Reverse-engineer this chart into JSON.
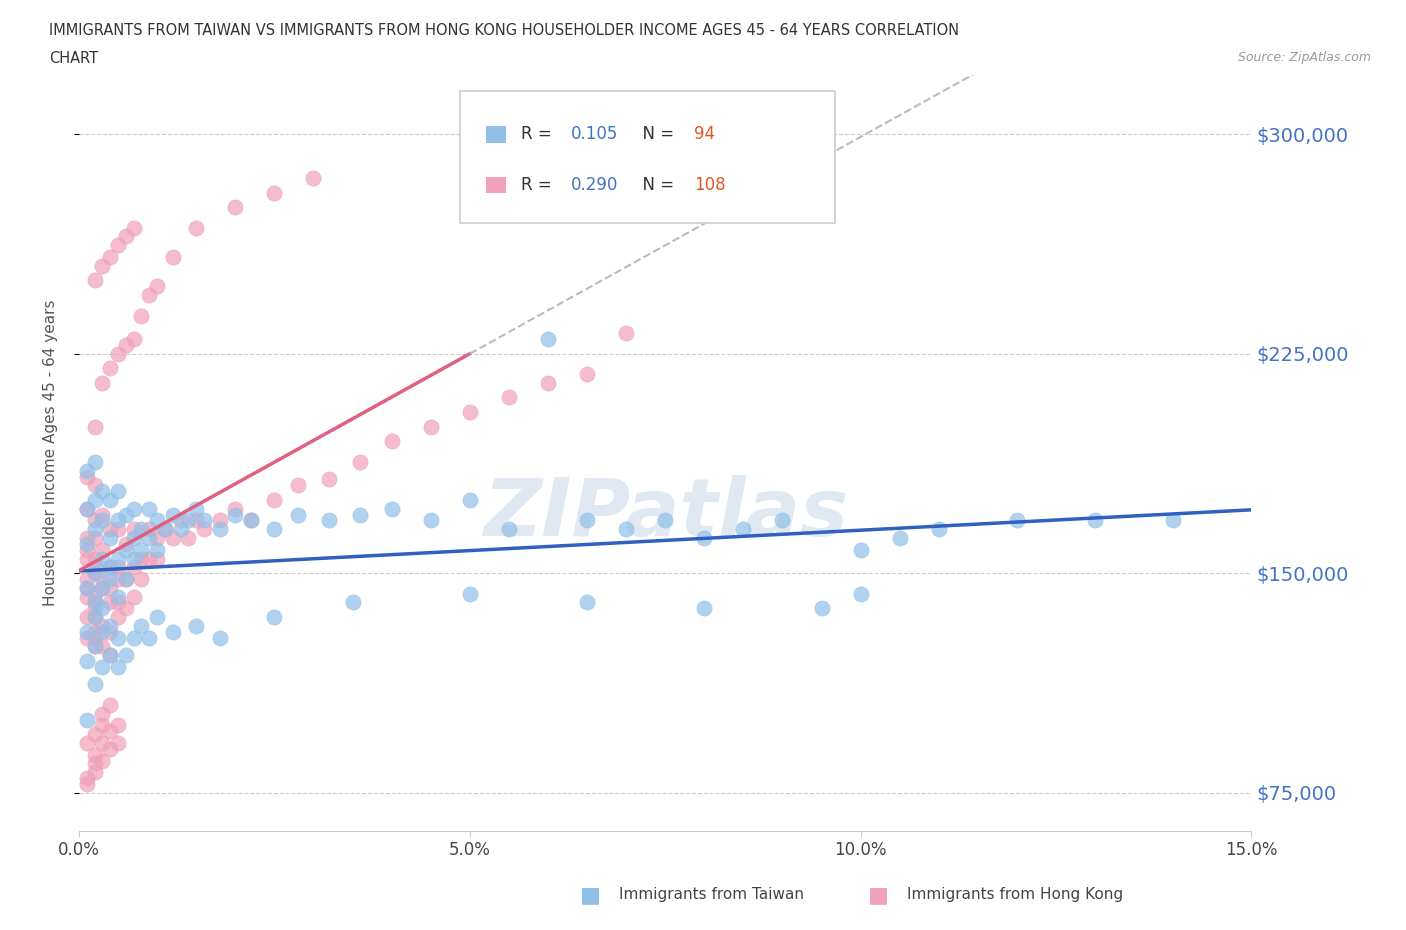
{
  "title_line1": "IMMIGRANTS FROM TAIWAN VS IMMIGRANTS FROM HONG KONG HOUSEHOLDER INCOME AGES 45 - 64 YEARS CORRELATION",
  "title_line2": "CHART",
  "source": "Source: ZipAtlas.com",
  "ylabel": "Householder Income Ages 45 - 64 years",
  "xlim": [
    0.0,
    0.15
  ],
  "ylim": [
    62000,
    320000
  ],
  "yticks": [
    75000,
    150000,
    225000,
    300000
  ],
  "xticks": [
    0.0,
    0.05,
    0.1,
    0.15
  ],
  "xtick_labels": [
    "0.0%",
    "5.0%",
    "10.0%",
    "15.0%"
  ],
  "ytick_labels": [
    "$75,000",
    "$150,000",
    "$225,000",
    "$300,000"
  ],
  "taiwan_color": "#90C0E8",
  "hk_color": "#F0A0B8",
  "taiwan_line_color": "#3060C0",
  "hk_line_color": "#E06080",
  "hk_dash_color": "#D0A0B0",
  "legend_taiwan_R": 0.105,
  "legend_taiwan_N": 94,
  "legend_hk_R": 0.29,
  "legend_hk_N": 108,
  "watermark": "ZIPatlas",
  "watermark_color": "#C8D8E8",
  "legend_R_color": "#4472C4",
  "legend_N_color": "#E05820",
  "taiwan_scatter_x": [
    0.001,
    0.001,
    0.001,
    0.001,
    0.001,
    0.002,
    0.002,
    0.002,
    0.002,
    0.002,
    0.002,
    0.003,
    0.003,
    0.003,
    0.003,
    0.003,
    0.004,
    0.004,
    0.004,
    0.004,
    0.005,
    0.005,
    0.005,
    0.005,
    0.006,
    0.006,
    0.006,
    0.007,
    0.007,
    0.007,
    0.008,
    0.008,
    0.009,
    0.009,
    0.01,
    0.01,
    0.011,
    0.012,
    0.013,
    0.014,
    0.015,
    0.016,
    0.018,
    0.02,
    0.022,
    0.025,
    0.028,
    0.032,
    0.036,
    0.04,
    0.045,
    0.05,
    0.055,
    0.06,
    0.065,
    0.07,
    0.075,
    0.08,
    0.085,
    0.09,
    0.095,
    0.1,
    0.105,
    0.11,
    0.12,
    0.13,
    0.14,
    0.001,
    0.001,
    0.002,
    0.002,
    0.003,
    0.003,
    0.004,
    0.004,
    0.005,
    0.005,
    0.006,
    0.007,
    0.008,
    0.009,
    0.01,
    0.012,
    0.015,
    0.018,
    0.025,
    0.035,
    0.05,
    0.065,
    0.08,
    0.1
  ],
  "taiwan_scatter_y": [
    130000,
    145000,
    160000,
    172000,
    185000,
    135000,
    150000,
    165000,
    175000,
    188000,
    140000,
    138000,
    155000,
    168000,
    178000,
    145000,
    152000,
    162000,
    175000,
    148000,
    155000,
    168000,
    178000,
    142000,
    158000,
    170000,
    148000,
    162000,
    172000,
    155000,
    165000,
    158000,
    162000,
    172000,
    168000,
    158000,
    165000,
    170000,
    165000,
    168000,
    172000,
    168000,
    165000,
    170000,
    168000,
    165000,
    170000,
    168000,
    170000,
    172000,
    168000,
    175000,
    165000,
    230000,
    168000,
    165000,
    168000,
    162000,
    165000,
    168000,
    138000,
    158000,
    162000,
    165000,
    168000,
    168000,
    168000,
    100000,
    120000,
    112000,
    125000,
    118000,
    130000,
    122000,
    132000,
    118000,
    128000,
    122000,
    128000,
    132000,
    128000,
    135000,
    130000,
    132000,
    128000,
    135000,
    140000,
    143000,
    140000,
    138000,
    143000
  ],
  "hk_scatter_x": [
    0.001,
    0.001,
    0.001,
    0.001,
    0.001,
    0.001,
    0.001,
    0.001,
    0.001,
    0.001,
    0.002,
    0.002,
    0.002,
    0.002,
    0.002,
    0.002,
    0.002,
    0.002,
    0.002,
    0.002,
    0.002,
    0.002,
    0.002,
    0.003,
    0.003,
    0.003,
    0.003,
    0.003,
    0.003,
    0.004,
    0.004,
    0.004,
    0.004,
    0.004,
    0.004,
    0.005,
    0.005,
    0.005,
    0.005,
    0.005,
    0.006,
    0.006,
    0.006,
    0.007,
    0.007,
    0.007,
    0.008,
    0.008,
    0.009,
    0.009,
    0.01,
    0.01,
    0.011,
    0.012,
    0.013,
    0.014,
    0.015,
    0.016,
    0.018,
    0.02,
    0.022,
    0.025,
    0.028,
    0.032,
    0.036,
    0.04,
    0.045,
    0.05,
    0.055,
    0.06,
    0.065,
    0.07,
    0.002,
    0.002,
    0.003,
    0.003,
    0.004,
    0.004,
    0.005,
    0.005,
    0.006,
    0.006,
    0.007,
    0.007,
    0.008,
    0.009,
    0.01,
    0.012,
    0.015,
    0.02,
    0.025,
    0.03,
    0.001,
    0.001,
    0.001,
    0.002,
    0.002,
    0.002,
    0.002,
    0.003,
    0.003,
    0.003,
    0.003,
    0.004,
    0.004,
    0.004,
    0.005,
    0.005
  ],
  "hk_scatter_y": [
    135000,
    148000,
    162000,
    172000,
    183000,
    128000,
    142000,
    155000,
    145000,
    158000,
    130000,
    143000,
    155000,
    168000,
    180000,
    128000,
    140000,
    152000,
    138000,
    150000,
    162000,
    125000,
    135000,
    145000,
    158000,
    170000,
    132000,
    148000,
    125000,
    140000,
    152000,
    165000,
    130000,
    145000,
    122000,
    140000,
    152000,
    165000,
    135000,
    148000,
    148000,
    160000,
    138000,
    152000,
    165000,
    142000,
    155000,
    148000,
    155000,
    165000,
    162000,
    155000,
    165000,
    162000,
    168000,
    162000,
    168000,
    165000,
    168000,
    172000,
    168000,
    175000,
    180000,
    182000,
    188000,
    195000,
    200000,
    205000,
    210000,
    215000,
    218000,
    232000,
    200000,
    250000,
    215000,
    255000,
    220000,
    258000,
    225000,
    262000,
    228000,
    265000,
    230000,
    268000,
    238000,
    245000,
    248000,
    258000,
    268000,
    275000,
    280000,
    285000,
    80000,
    92000,
    78000,
    85000,
    95000,
    82000,
    88000,
    98000,
    86000,
    92000,
    102000,
    90000,
    96000,
    105000,
    92000,
    98000
  ]
}
